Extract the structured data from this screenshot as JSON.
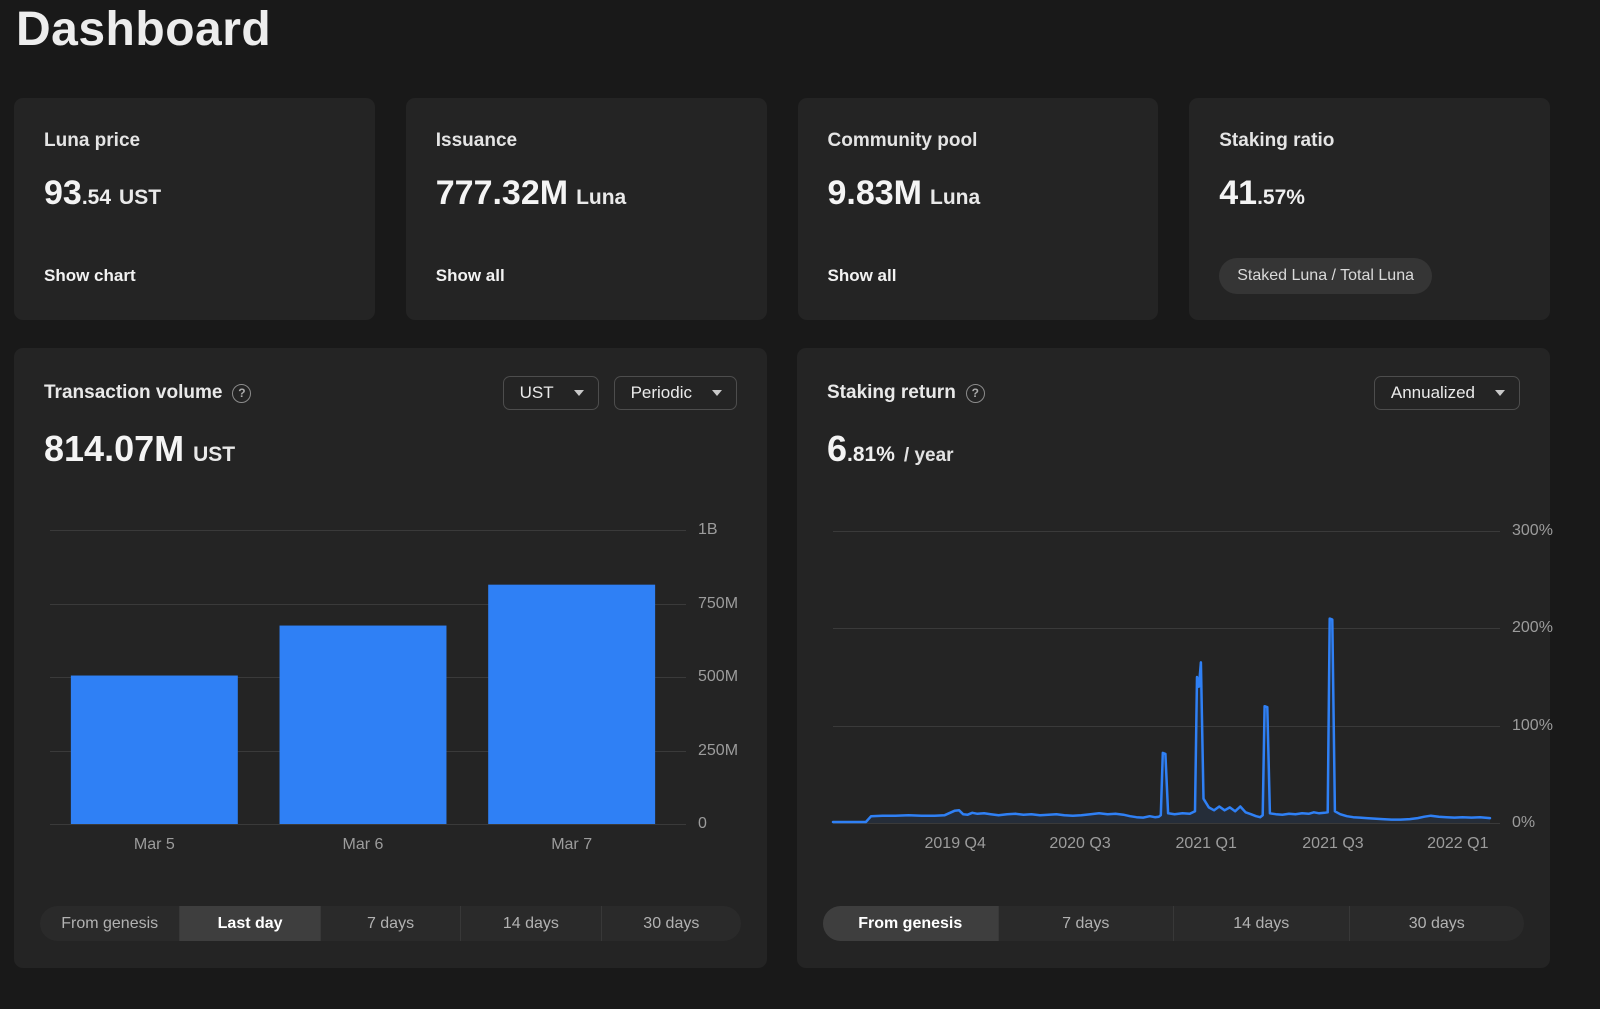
{
  "page": {
    "title": "Dashboard"
  },
  "icons": {
    "help": "?"
  },
  "colors": {
    "accent": "#2f80f5",
    "page_bg": "#191919",
    "card_bg": "#242424",
    "grid": "#3a3a3a",
    "axis_text": "#9c9c9c"
  },
  "stat_cards": [
    {
      "label": "Luna price",
      "value_big": "93",
      "value_small": ".54",
      "unit": "UST",
      "action": "Show chart"
    },
    {
      "label": "Issuance",
      "value_big": "777.32M",
      "value_small": "",
      "unit": "Luna",
      "action": "Show all"
    },
    {
      "label": "Community pool",
      "value_big": "9.83M",
      "value_small": "",
      "unit": "Luna",
      "action": "Show all"
    },
    {
      "label": "Staking ratio",
      "value_big": "41",
      "value_small": ".57%",
      "unit": "",
      "badge": "Staked Luna / Total Luna"
    }
  ],
  "tx_panel": {
    "title": "Transaction volume",
    "selects": [
      {
        "value": "UST"
      },
      {
        "value": "Periodic"
      }
    ],
    "value_big": "814.07M",
    "unit": "UST",
    "ranges": [
      "From genesis",
      "Last day",
      "7 days",
      "14 days",
      "30 days"
    ],
    "active_range": 1
  },
  "staking_panel": {
    "title": "Staking return",
    "selects": [
      {
        "value": "Annualized"
      }
    ],
    "value_big": "6",
    "value_small": ".81%",
    "suffix": "/ year",
    "ranges": [
      "From genesis",
      "7 days",
      "14 days",
      "30 days"
    ],
    "active_range": 0
  },
  "chart_data": [
    {
      "id": "tx-volume-chart",
      "type": "bar",
      "title": "Transaction volume (UST, periodic)",
      "categories": [
        "Mar 5",
        "Mar 6",
        "Mar 7"
      ],
      "values": [
        505000000,
        675000000,
        814070000
      ],
      "xlabel": "",
      "ylabel": "UST",
      "ylim": [
        0,
        1000000000
      ],
      "yticks": [
        {
          "value": 0,
          "label": "0"
        },
        {
          "value": 250000000,
          "label": "250M"
        },
        {
          "value": 500000000,
          "label": "500M"
        },
        {
          "value": 750000000,
          "label": "750M"
        },
        {
          "value": 1000000000,
          "label": "1B"
        }
      ],
      "grid": true,
      "legend": false,
      "bar_color": "#2f80f5"
    },
    {
      "id": "staking-return-chart",
      "type": "line",
      "title": "Staking return (annualized, from genesis)",
      "xlabel": "",
      "ylabel": "percent per year",
      "ylim": [
        0,
        300
      ],
      "yticks": [
        {
          "value": 0,
          "label": "0%"
        },
        {
          "value": 100,
          "label": "100%"
        },
        {
          "value": 200,
          "label": "200%"
        },
        {
          "value": 300,
          "label": "300%"
        }
      ],
      "x_ticks": [
        {
          "pos": 0.186,
          "label": "2019 Q4"
        },
        {
          "pos": 0.376,
          "label": "2020 Q3"
        },
        {
          "pos": 0.568,
          "label": "2021 Q1"
        },
        {
          "pos": 0.761,
          "label": "2021 Q3"
        },
        {
          "pos": 0.951,
          "label": "2022 Q1"
        }
      ],
      "grid": true,
      "legend": false,
      "line_color": "#2f80f5",
      "fill_color": "rgba(47,128,245,0.10)",
      "points": [
        [
          0.0,
          1
        ],
        [
          0.025,
          1
        ],
        [
          0.05,
          1
        ],
        [
          0.058,
          7
        ],
        [
          0.075,
          7.5
        ],
        [
          0.095,
          7.5
        ],
        [
          0.115,
          8
        ],
        [
          0.135,
          7.5
        ],
        [
          0.155,
          7.5
        ],
        [
          0.17,
          8
        ],
        [
          0.185,
          12.5
        ],
        [
          0.192,
          13
        ],
        [
          0.198,
          9
        ],
        [
          0.205,
          8.5
        ],
        [
          0.212,
          10.5
        ],
        [
          0.22,
          9.5
        ],
        [
          0.23,
          10
        ],
        [
          0.24,
          9
        ],
        [
          0.252,
          8
        ],
        [
          0.265,
          9
        ],
        [
          0.278,
          9.5
        ],
        [
          0.29,
          8.5
        ],
        [
          0.302,
          9
        ],
        [
          0.315,
          8
        ],
        [
          0.328,
          8.5
        ],
        [
          0.34,
          9
        ],
        [
          0.352,
          8
        ],
        [
          0.365,
          7.5
        ],
        [
          0.378,
          8
        ],
        [
          0.392,
          9
        ],
        [
          0.405,
          10
        ],
        [
          0.418,
          9
        ],
        [
          0.43,
          9.5
        ],
        [
          0.442,
          8.5
        ],
        [
          0.452,
          7
        ],
        [
          0.462,
          6
        ],
        [
          0.472,
          5.5
        ],
        [
          0.482,
          7
        ],
        [
          0.49,
          6
        ],
        [
          0.496,
          6.5
        ],
        [
          0.499,
          8
        ],
        [
          0.502,
          72
        ],
        [
          0.506,
          71
        ],
        [
          0.51,
          10
        ],
        [
          0.52,
          9
        ],
        [
          0.532,
          10
        ],
        [
          0.543,
          9.5
        ],
        [
          0.551,
          12
        ],
        [
          0.554,
          150
        ],
        [
          0.557,
          140
        ],
        [
          0.56,
          165
        ],
        [
          0.564,
          25
        ],
        [
          0.572,
          16
        ],
        [
          0.58,
          13
        ],
        [
          0.588,
          17
        ],
        [
          0.596,
          13
        ],
        [
          0.604,
          16
        ],
        [
          0.612,
          12
        ],
        [
          0.62,
          17
        ],
        [
          0.628,
          11
        ],
        [
          0.636,
          9
        ],
        [
          0.644,
          7
        ],
        [
          0.65,
          6
        ],
        [
          0.654,
          8
        ],
        [
          0.657,
          120
        ],
        [
          0.661,
          119
        ],
        [
          0.665,
          10
        ],
        [
          0.674,
          9
        ],
        [
          0.684,
          8.5
        ],
        [
          0.694,
          9.5
        ],
        [
          0.704,
          9
        ],
        [
          0.714,
          10
        ],
        [
          0.724,
          9.5
        ],
        [
          0.732,
          11
        ],
        [
          0.74,
          10
        ],
        [
          0.748,
          10.5
        ],
        [
          0.753,
          11
        ],
        [
          0.756,
          210
        ],
        [
          0.76,
          209
        ],
        [
          0.764,
          12
        ],
        [
          0.772,
          9
        ],
        [
          0.782,
          7
        ],
        [
          0.792,
          6
        ],
        [
          0.802,
          5.5
        ],
        [
          0.812,
          5
        ],
        [
          0.824,
          4.5
        ],
        [
          0.836,
          4
        ],
        [
          0.85,
          3.5
        ],
        [
          0.864,
          3.5
        ],
        [
          0.878,
          4
        ],
        [
          0.89,
          5
        ],
        [
          0.9,
          6.5
        ],
        [
          0.91,
          7.5
        ],
        [
          0.922,
          6.5
        ],
        [
          0.934,
          6
        ],
        [
          0.946,
          5.5
        ],
        [
          0.958,
          6
        ],
        [
          0.972,
          5.5
        ],
        [
          0.985,
          6
        ],
        [
          1.0,
          5
        ]
      ]
    }
  ]
}
